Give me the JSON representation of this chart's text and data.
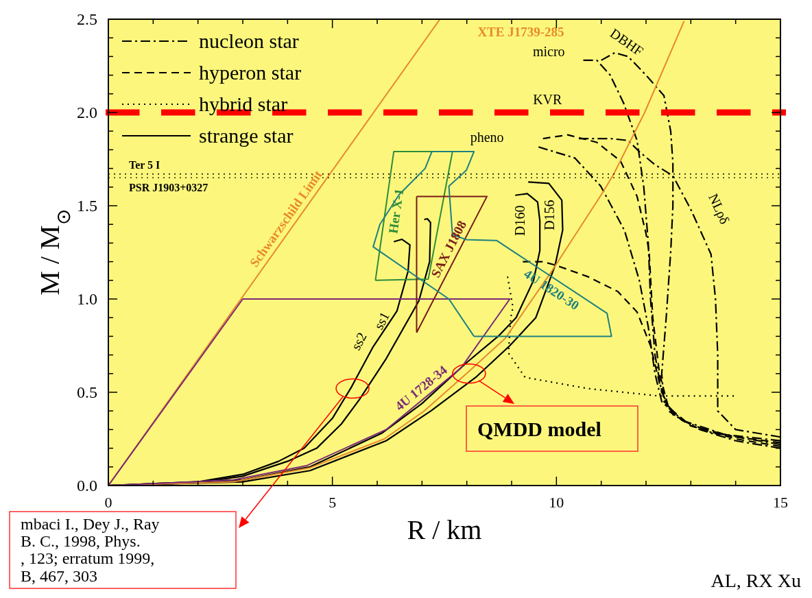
{
  "chart_data": {
    "type": "line",
    "xlabel": "R / km",
    "ylabel": "M / M$_{⊙}$",
    "xlim": [
      0,
      15
    ],
    "ylim": [
      0,
      2.5
    ],
    "xticks": [
      0,
      {
        "value": 1,
        "label": null
      },
      {
        "value": 2,
        "label": null
      },
      {
        "value": 3,
        "label": null
      },
      {
        "value": 4,
        "label": null
      },
      5,
      {
        "value": 6,
        "label": null
      },
      {
        "value": 7,
        "label": null
      },
      {
        "value": 8,
        "label": null
      },
      {
        "value": 9,
        "label": null
      },
      10,
      {
        "value": 11,
        "label": null
      },
      {
        "value": 12,
        "label": null
      },
      {
        "value": 13,
        "label": null
      },
      {
        "value": 14,
        "label": null
      },
      15
    ],
    "yticks": [
      {
        "value": 0,
        "label": "0.0"
      },
      {
        "value": 0.1,
        "label": null
      },
      {
        "value": 0.2,
        "label": null
      },
      {
        "value": 0.3,
        "label": null
      },
      {
        "value": 0.4,
        "label": null
      },
      0.5,
      {
        "value": 0.6,
        "label": null
      },
      {
        "value": 0.7,
        "label": null
      },
      {
        "value": 0.8,
        "label": null
      },
      {
        "value": 0.9,
        "label": null
      },
      {
        "value": 1,
        "label": "1.0"
      },
      {
        "value": 1.1,
        "label": null
      },
      {
        "value": 1.2,
        "label": null
      },
      {
        "value": 1.3,
        "label": null
      },
      {
        "value": 1.4,
        "label": null
      },
      1.5,
      {
        "value": 1.6,
        "label": null
      },
      {
        "value": 1.7,
        "label": null
      },
      {
        "value": 1.8,
        "label": null
      },
      {
        "value": 1.9,
        "label": null
      },
      {
        "value": 2,
        "label": "2.0"
      },
      {
        "value": 2.1,
        "label": null
      },
      {
        "value": 2.2,
        "label": null
      },
      {
        "value": 2.3,
        "label": null
      },
      {
        "value": 2.4,
        "label": null
      },
      2.5
    ],
    "legend": "top left",
    "series": [
      {
        "name": "nucleon star",
        "color": "#000000",
        "line_style": "dashdot",
        "x": [
          10.6,
          10.9,
          11.2,
          11.5,
          11.8,
          11.95,
          12.05,
          12.1,
          12.2,
          12.35,
          12.6,
          13.2,
          14,
          15
        ],
        "values": [
          2.28,
          2.28,
          2.2,
          2.05,
          1.85,
          1.6,
          1.3,
          1.0,
          0.7,
          0.5,
          0.38,
          0.3,
          0.24,
          0.2
        ]
      },
      {
        "color": "#000000",
        "line_style": "dashdot",
        "x": [
          11.0,
          11.3,
          11.6,
          12.0,
          12.4,
          12.55,
          12.6,
          12.6,
          12.55,
          12.45,
          12.35,
          12.4,
          12.8,
          13.5,
          15
        ],
        "values": [
          2.28,
          2.32,
          2.3,
          2.2,
          2.09,
          1.9,
          1.73,
          1.5,
          1.25,
          0.9,
          0.6,
          0.45,
          0.35,
          0.28,
          0.24
        ]
      },
      {
        "color": "#000000",
        "line_style": "dashdot",
        "x": [
          10.5,
          11.2,
          11.6,
          11.85,
          12.2,
          12.6,
          13.0,
          13.45,
          13.55,
          13.6,
          13.6,
          14,
          15
        ],
        "values": [
          1.86,
          1.86,
          1.85,
          1.79,
          1.72,
          1.66,
          1.48,
          1.24,
          1.0,
          0.7,
          0.4,
          0.3,
          0.26
        ]
      },
      {
        "color": "#000000",
        "line_style": "dashdot",
        "x": [
          9.6,
          10.41,
          10.99,
          11.52,
          11.85,
          12.05,
          12.2,
          12.35,
          12.8,
          13.8,
          15
        ],
        "values": [
          1.815,
          1.756,
          1.605,
          1.367,
          1.1,
          0.85,
          0.6,
          0.45,
          0.35,
          0.27,
          0.22
        ]
      },
      {
        "name": "hyperon star",
        "color": "#000000",
        "line_style": "dashed",
        "x": [
          9.7,
          10.25,
          10.9,
          11.43,
          11.8,
          12.0,
          12.07,
          12.15,
          12.3,
          12.5,
          13,
          14,
          15
        ],
        "values": [
          1.86,
          1.88,
          1.84,
          1.74,
          1.55,
          1.35,
          1.25,
          0.9,
          0.6,
          0.42,
          0.32,
          0.26,
          0.23
        ]
      },
      {
        "color": "#000000",
        "line_style": "dashed",
        "x": [
          9.25,
          9.7,
          10.0,
          10.7,
          11.37,
          11.8,
          12.1,
          12.3,
          12.5,
          13.0,
          14,
          15
        ],
        "values": [
          1.2,
          1.2,
          1.18,
          1.12,
          1.04,
          0.93,
          0.75,
          0.55,
          0.4,
          0.32,
          0.25,
          0.21
        ]
      },
      {
        "name": "hybrid star",
        "color": "#000000",
        "line_style": "dotted",
        "x": [
          8.91,
          9.03,
          8.98,
          8.93,
          9.3,
          10.7,
          12.3,
          13.96
        ],
        "values": [
          1.12,
          0.955,
          0.9,
          0.71,
          0.58,
          0.52,
          0.48,
          0.48
        ]
      },
      {
        "name": "strange star",
        "color": "#000000",
        "line_style": "solid",
        "x": [
          0,
          2,
          3,
          3.8,
          4.37,
          5.0,
          5.43,
          5.9,
          6.44,
          6.69,
          6.73,
          6.55,
          6.37
        ],
        "values": [
          0,
          0.02,
          0.06,
          0.13,
          0.2,
          0.36,
          0.53,
          0.74,
          0.935,
          1.15,
          1.29,
          1.32,
          1.307
        ]
      },
      {
        "color": "#000000",
        "line_style": "solid",
        "x": [
          0,
          2,
          3,
          4,
          4.65,
          5.2,
          5.6,
          6.2,
          6.93,
          7.17,
          7.19,
          7.12,
          7.05
        ],
        "values": [
          0,
          0.015,
          0.05,
          0.13,
          0.2,
          0.33,
          0.46,
          0.68,
          0.99,
          1.2,
          1.41,
          1.43,
          1.426
        ]
      },
      {
        "color": "#000000",
        "line_style": "solid",
        "x": [
          0,
          3,
          4.5,
          6.1,
          7.0,
          8.0,
          8.7,
          9.1,
          9.49,
          9.63,
          9.63,
          9.58,
          9.35,
          9.08
        ],
        "values": [
          0,
          0.03,
          0.1,
          0.28,
          0.44,
          0.66,
          0.8,
          0.9,
          1.1,
          1.26,
          1.42,
          1.52,
          1.565,
          1.556
        ]
      },
      {
        "color": "#000000",
        "line_style": "solid",
        "x": [
          0,
          3,
          4.5,
          6.2,
          7.2,
          8.2,
          8.96,
          9.54,
          9.97,
          10.14,
          10.12,
          9.83,
          9.37
        ],
        "values": [
          0,
          0.02,
          0.08,
          0.24,
          0.4,
          0.58,
          0.75,
          0.9,
          1.18,
          1.37,
          1.53,
          1.62,
          1.627
        ]
      },
      {
        "name": "Schwarzschild Limit",
        "color": "#e8892a",
        "x": [
          0,
          7.4
        ],
        "values": [
          0,
          2.5
        ]
      },
      {
        "name": "XTE J1739-285",
        "color": "#e8892a",
        "x": [
          0,
          2.8,
          4.5,
          6.16,
          7.05,
          8.04,
          8.86,
          9.87,
          11.03,
          11.28,
          11.97,
          12.85
        ],
        "values": [
          0,
          0.02,
          0.095,
          0.25,
          0.4,
          0.61,
          0.79,
          1.14,
          1.57,
          1.67,
          2.0,
          2.49
        ]
      },
      {
        "name": "4U 1728-34",
        "color": "#7b2a78",
        "x": [
          0,
          3,
          8.96,
          7.87,
          6.2,
          null,
          6.2,
          4.43,
          2.8,
          0
        ],
        "values": [
          0,
          1.0,
          1.0,
          0.63,
          0.3,
          null,
          0.3,
          0.107,
          0.03,
          0
        ]
      },
      {
        "name": "Her X-1",
        "color": "#2e8b3a",
        "x": [
          5.96,
          6.37,
          7.68,
          null,
          7.68,
          7.14,
          5.96
        ],
        "values": [
          1.1,
          1.79,
          1.79,
          null,
          1.79,
          1.107,
          1.1
        ]
      },
      {
        "name": "SAX J1808",
        "color": "#7a1a1a",
        "x": [
          6.88,
          8.45,
          6.88,
          null,
          6.88,
          6.88
        ],
        "values": [
          1.55,
          1.55,
          0.82,
          null,
          0.82,
          1.55
        ]
      },
      {
        "name": "4U 1820-30",
        "color": "#1e8080",
        "x": [
          7.22,
          8.16,
          7.99,
          7.6,
          7.68,
          7.99,
          8.67,
          11.13,
          11.23,
          8.16,
          null,
          8.16,
          7.6,
          5.91,
          6.06,
          6.49,
          7.07,
          7.22
        ],
        "values": [
          1.79,
          1.79,
          1.69,
          1.605,
          1.345,
          1.318,
          1.313,
          0.923,
          0.8,
          0.8,
          null,
          0.8,
          1.0,
          1.28,
          1.4,
          1.56,
          1.7,
          1.79
        ]
      }
    ],
    "ref_lines": [
      {
        "axis": "y",
        "value": 1.67,
        "label": "Ter 5 I",
        "color": "#000000",
        "line_style": "dotted"
      },
      {
        "axis": "y",
        "value": 1.65,
        "label": "PSR J1903+0327",
        "color": "#000000",
        "line_style": "dotted"
      },
      {
        "axis": "y",
        "value": 2.0,
        "color": "#ff0000",
        "line_style": "dashed"
      }
    ],
    "annotations": [
      "ss2",
      "ss1",
      "D160",
      "D156",
      "micro",
      "DBHF",
      "KVR",
      "pheno",
      "NLρδ",
      {
        "text": "QMDD model",
        "x": 8.05,
        "y": 0.6
      },
      "mbaci I., Dey J., Ray\nB. C., 1998, Phys.\n, 123; erratum 1999,\nB, 467, 303",
      "AL, RX Xu"
    ]
  }
}
